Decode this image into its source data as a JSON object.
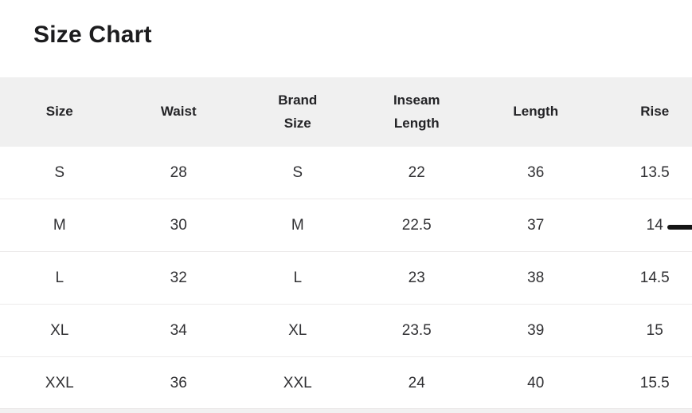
{
  "page": {
    "title": "Size Chart"
  },
  "table": {
    "columns": [
      "Size",
      "Waist",
      "Brand Size",
      "Inseam Length",
      "Length",
      "Rise"
    ],
    "rows": [
      [
        "S",
        "28",
        "S",
        "22",
        "36",
        "13.5"
      ],
      [
        "M",
        "30",
        "M",
        "22.5",
        "37",
        "14"
      ],
      [
        "L",
        "32",
        "L",
        "23",
        "38",
        "14.5"
      ],
      [
        "XL",
        "34",
        "XL",
        "23.5",
        "39",
        "15"
      ],
      [
        "XXL",
        "36",
        "XXL",
        "24",
        "40",
        "15.5"
      ]
    ]
  },
  "colors": {
    "header_bg": "#f0f0f0",
    "row_border": "#eceaea",
    "title_text": "#1c1c1e",
    "header_text": "#232326",
    "cell_text": "#313134",
    "indicator": "#151515"
  }
}
